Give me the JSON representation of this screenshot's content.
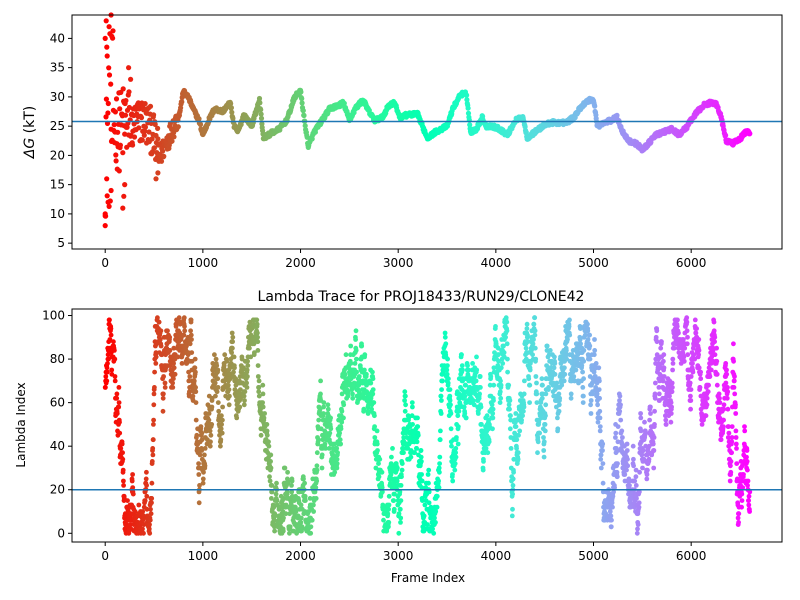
{
  "chart_data": [
    {
      "type": "scatter",
      "title": "",
      "xlabel": "",
      "ylabel": "ΔG (kT)",
      "ylabel_parts": {
        "symbol": "ΔG",
        "unit": " (kT)"
      },
      "xlim": [
        -340,
        6930
      ],
      "ylim": [
        4,
        44
      ],
      "xticks": [
        0,
        1000,
        2000,
        3000,
        4000,
        5000,
        6000
      ],
      "yticks": [
        5,
        10,
        15,
        20,
        25,
        30,
        35,
        40
      ],
      "hline": 25.8,
      "hline_color": "#1f77b4",
      "colormap": "rainbow (red at frame 0 → violet at the last frame)",
      "grid": false,
      "n_frames": 6600,
      "trace_knots": [
        [
          0,
          25
        ],
        [
          40,
          26
        ],
        [
          80,
          25.5
        ],
        [
          150,
          24
        ],
        [
          200,
          26
        ],
        [
          260,
          24.5
        ],
        [
          320,
          25.5
        ],
        [
          400,
          26
        ],
        [
          480,
          24
        ],
        [
          530,
          21
        ],
        [
          560,
          20
        ],
        [
          620,
          22
        ],
        [
          700,
          25
        ],
        [
          760,
          27
        ],
        [
          800,
          31
        ],
        [
          850,
          30
        ],
        [
          900,
          28
        ],
        [
          960,
          26
        ],
        [
          1000,
          23.5
        ],
        [
          1060,
          26
        ],
        [
          1120,
          28
        ],
        [
          1200,
          27.5
        ],
        [
          1280,
          29
        ],
        [
          1320,
          25
        ],
        [
          1360,
          24
        ],
        [
          1420,
          27
        ],
        [
          1500,
          25
        ],
        [
          1580,
          29.5
        ],
        [
          1620,
          23
        ],
        [
          1700,
          23.8
        ],
        [
          1780,
          24.5
        ],
        [
          1860,
          26
        ],
        [
          1940,
          30
        ],
        [
          2000,
          31
        ],
        [
          2040,
          26
        ],
        [
          2080,
          21.5
        ],
        [
          2140,
          24
        ],
        [
          2220,
          26
        ],
        [
          2300,
          28
        ],
        [
          2380,
          28.5
        ],
        [
          2440,
          29
        ],
        [
          2500,
          26
        ],
        [
          2560,
          28
        ],
        [
          2640,
          29.5
        ],
        [
          2700,
          27.5
        ],
        [
          2760,
          26
        ],
        [
          2840,
          26.5
        ],
        [
          2900,
          28.5
        ],
        [
          2960,
          29
        ],
        [
          3020,
          26.5
        ],
        [
          3100,
          27
        ],
        [
          3200,
          27
        ],
        [
          3260,
          24.5
        ],
        [
          3300,
          23
        ],
        [
          3380,
          24
        ],
        [
          3440,
          24.5
        ],
        [
          3500,
          25
        ],
        [
          3560,
          28
        ],
        [
          3640,
          30.5
        ],
        [
          3700,
          30.5
        ],
        [
          3740,
          24
        ],
        [
          3800,
          24.5
        ],
        [
          3860,
          26.5
        ],
        [
          3900,
          25
        ],
        [
          3960,
          25
        ],
        [
          4040,
          24.5
        ],
        [
          4120,
          23.5
        ],
        [
          4200,
          26
        ],
        [
          4280,
          26.5
        ],
        [
          4320,
          23
        ],
        [
          4400,
          24
        ],
        [
          4480,
          25
        ],
        [
          4560,
          25.6
        ],
        [
          4640,
          25.6
        ],
        [
          4720,
          25.6
        ],
        [
          4800,
          26.5
        ],
        [
          4880,
          28.5
        ],
        [
          4960,
          29.5
        ],
        [
          5000,
          29.5
        ],
        [
          5040,
          25
        ],
        [
          5100,
          25.5
        ],
        [
          5180,
          26
        ],
        [
          5240,
          26.5
        ],
        [
          5300,
          24
        ],
        [
          5360,
          22.5
        ],
        [
          5440,
          22
        ],
        [
          5500,
          21
        ],
        [
          5560,
          22
        ],
        [
          5640,
          23.5
        ],
        [
          5720,
          24
        ],
        [
          5800,
          24.5
        ],
        [
          5880,
          23.5
        ],
        [
          5960,
          25
        ],
        [
          6040,
          27
        ],
        [
          6120,
          28.5
        ],
        [
          6200,
          29
        ],
        [
          6250,
          29
        ],
        [
          6300,
          27
        ],
        [
          6360,
          22.5
        ],
        [
          6420,
          22
        ],
        [
          6480,
          22.5
        ],
        [
          6560,
          24
        ],
        [
          6600,
          24
        ]
      ],
      "early_noise": [
        {
          "until_frame": 80,
          "amplitude": 16
        },
        {
          "until_frame": 250,
          "amplitude": 7
        },
        {
          "until_frame": 550,
          "amplitude": 4
        },
        {
          "until_frame": 750,
          "amplitude": 2
        },
        {
          "until_frame": 6600,
          "amplitude": 0.35
        }
      ],
      "dip_points": [
        [
          0,
          8
        ],
        [
          0,
          10
        ],
        [
          15,
          16
        ],
        [
          30,
          12
        ],
        [
          60,
          14
        ],
        [
          180,
          11
        ],
        [
          190,
          13
        ],
        [
          200,
          15
        ],
        [
          520,
          16
        ],
        [
          540,
          17
        ],
        [
          550,
          19
        ]
      ],
      "spike_points": [
        [
          0,
          40
        ],
        [
          10,
          43
        ],
        [
          20,
          37
        ],
        [
          40,
          42
        ],
        [
          60,
          44
        ],
        [
          240,
          35
        ],
        [
          260,
          33
        ]
      ]
    },
    {
      "type": "scatter",
      "title": "Lambda Trace for PROJ18433/RUN29/CLONE42",
      "xlabel": "Frame Index",
      "ylabel": "Lambda Index",
      "xlim": [
        -340,
        6930
      ],
      "ylim": [
        -4,
        103
      ],
      "xticks": [
        0,
        1000,
        2000,
        3000,
        4000,
        5000,
        6000
      ],
      "yticks": [
        0,
        20,
        40,
        60,
        80,
        100
      ],
      "hline": 20,
      "hline_color": "#1f77b4",
      "colormap": "rainbow (red at frame 0 → violet at the last frame)",
      "grid": false,
      "n_frames": 6600,
      "lambda_min": 0,
      "lambda_max": 99,
      "walk_step_max": 9
    }
  ]
}
